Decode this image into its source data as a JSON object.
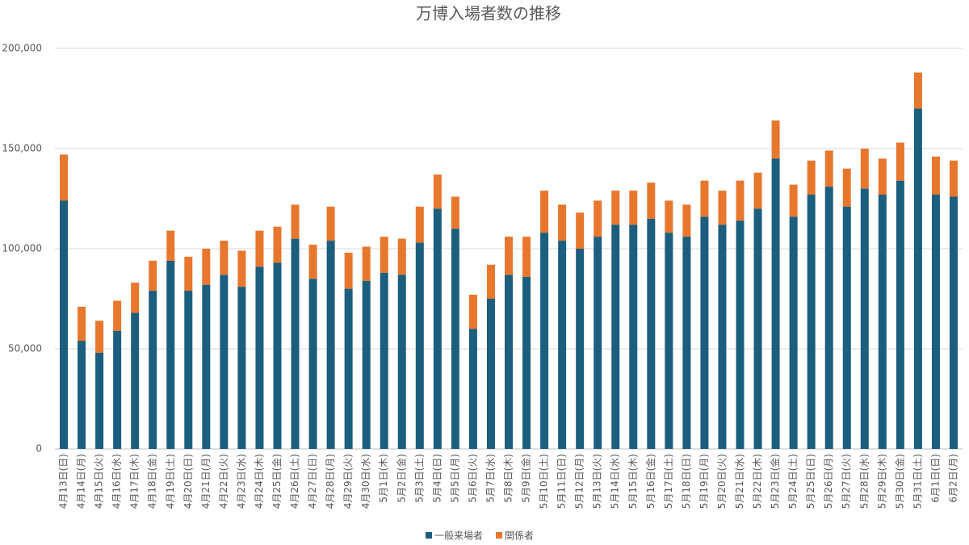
{
  "chart_data": {
    "type": "stacked_bar",
    "title": "万博入場者数の推移",
    "categories": [
      "4月13日(日)",
      "4月14日(月)",
      "4月15日(火)",
      "4月16日(水)",
      "4月17日(木)",
      "4月18日(金)",
      "4月19日(土)",
      "4月20日(日)",
      "4月21日(月)",
      "4月22日(火)",
      "4月23日(水)",
      "4月24日(木)",
      "4月25日(金)",
      "4月26日(土)",
      "4月27日(日)",
      "4月28日(月)",
      "4月29日(火)",
      "4月30日(水)",
      "5月1日(木)",
      "5月2日(金)",
      "5月3日(土)",
      "5月4日(日)",
      "5月5日(月)",
      "5月6日(火)",
      "5月7日(水)",
      "5月8日(木)",
      "5月9日(金)",
      "5月10日(土)",
      "5月11日(日)",
      "5月12日(月)",
      "5月13日(火)",
      "5月14日(水)",
      "5月15日(木)",
      "5月16日(金)",
      "5月17日(土)",
      "5月18日(日)",
      "5月19日(月)",
      "5月20日(火)",
      "5月21日(水)",
      "5月22日(木)",
      "5月23日(金)",
      "5月24日(土)",
      "5月25日(日)",
      "5月26日(月)",
      "5月27日(火)",
      "5月28日(水)",
      "5月29日(木)",
      "5月30日(金)",
      "5月31日(土)",
      "6月1日(日)",
      "6月2日(月)"
    ],
    "series": [
      {
        "name": "一般来場者",
        "color": "#1b5e7e",
        "values": [
          124000,
          54000,
          48000,
          59000,
          68000,
          79000,
          94000,
          79000,
          82000,
          87000,
          81000,
          91000,
          93000,
          105000,
          85000,
          104000,
          80000,
          84000,
          88000,
          87000,
          103000,
          120000,
          110000,
          60000,
          75000,
          87000,
          86000,
          108000,
          104000,
          100000,
          106000,
          112000,
          112000,
          115000,
          108000,
          106000,
          116000,
          112000,
          114000,
          120000,
          145000,
          116000,
          127000,
          131000,
          121000,
          130000,
          127000,
          134000,
          170000,
          127000,
          126000
        ]
      },
      {
        "name": "関係者",
        "color": "#e8772e",
        "values": [
          23000,
          17000,
          16000,
          15000,
          15000,
          15000,
          15000,
          17000,
          18000,
          17000,
          18000,
          18000,
          18000,
          17000,
          17000,
          17000,
          18000,
          17000,
          18000,
          18000,
          18000,
          17000,
          16000,
          17000,
          17000,
          19000,
          20000,
          21000,
          18000,
          18000,
          18000,
          17000,
          17000,
          18000,
          16000,
          16000,
          18000,
          17000,
          20000,
          18000,
          19000,
          16000,
          17000,
          18000,
          19000,
          20000,
          18000,
          19000,
          18000,
          19000,
          18000
        ]
      }
    ],
    "ylim": [
      0,
      200000
    ],
    "yticks": [
      0,
      {
        "value": 50000,
        "label": "50,000"
      },
      {
        "value": 100000,
        "label": "100,000"
      },
      {
        "value": 150000,
        "label": "150,000"
      },
      {
        "value": 200000,
        "label": "200,000"
      }
    ],
    "grid": true,
    "legend": "bottom"
  }
}
